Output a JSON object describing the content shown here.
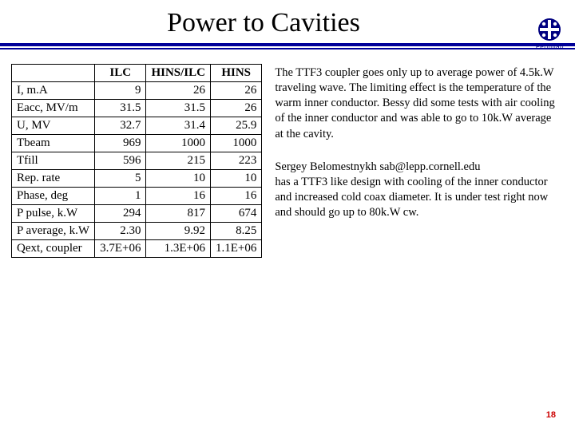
{
  "title": "Power to Cavities",
  "logo_label": "Fermilab",
  "logo_color": "#000080",
  "rule_color": "#000099",
  "page_number": "18",
  "page_number_color": "#cc0000",
  "table": {
    "columns": [
      "",
      "ILC",
      "HINS/ILC",
      "HINS"
    ],
    "rows": [
      [
        "I, m.A",
        "9",
        "26",
        "26"
      ],
      [
        "Eacc, MV/m",
        "31.5",
        "31.5",
        "26"
      ],
      [
        "U, MV",
        "32.7",
        "31.4",
        "25.9"
      ],
      [
        "Tbeam",
        "969",
        "1000",
        "1000"
      ],
      [
        "Tfill",
        "596",
        "215",
        "223"
      ],
      [
        "Rep. rate",
        "5",
        "10",
        "10"
      ],
      [
        "Phase, deg",
        "1",
        "16",
        "16"
      ],
      [
        "P pulse, k.W",
        "294",
        "817",
        "674"
      ],
      [
        "P average, k.W",
        "2.30",
        "9.92",
        "8.25"
      ],
      [
        "Qext, coupler",
        "3.7E+06",
        "1.3E+06",
        "1.1E+06"
      ]
    ]
  },
  "paragraphs": {
    "p1": "The TTF3 coupler goes only up to average power of 4.5k.W traveling wave. The limiting effect is the temperature of the warm inner conductor. Bessy did some tests with air cooling of the inner conductor and was able to go to 10k.W average at the cavity.",
    "p2": "Sergey Belomestnykh sab@lepp.cornell.edu",
    "p3": "has a TTF3 like design with cooling of the inner conductor and increased cold coax diameter. It is under test right now and should go up to 80k.W cw."
  }
}
